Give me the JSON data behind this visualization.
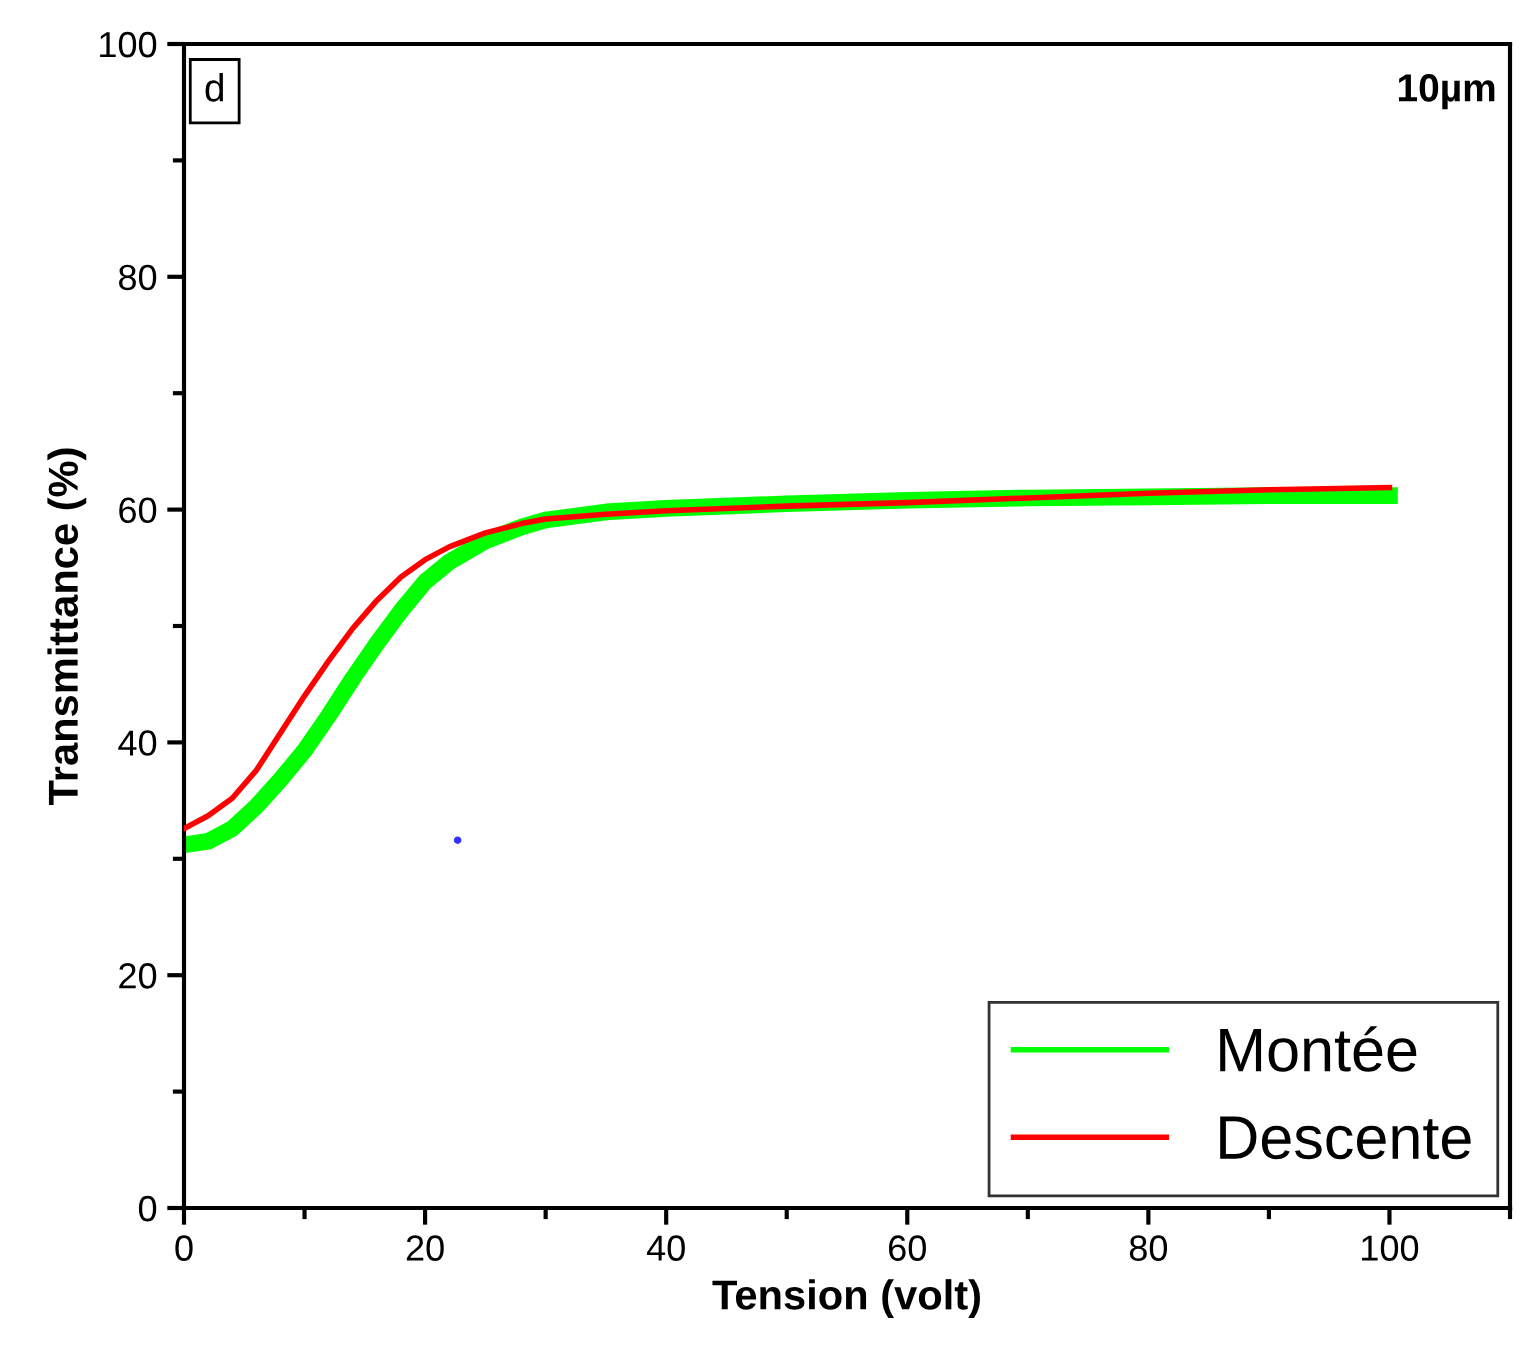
{
  "chart_data": {
    "type": "line",
    "xlabel": "Tension (volt)",
    "ylabel": "Transmittance (%)",
    "xlim": [
      0,
      110
    ],
    "ylim": [
      0,
      100
    ],
    "xticks": [
      0,
      20,
      40,
      60,
      80,
      100
    ],
    "yticks": [
      0,
      20,
      40,
      60,
      80,
      100
    ],
    "grid": false,
    "legend": "bottom right",
    "annotations": [
      "d",
      "10µm"
    ],
    "series": [
      {
        "name": "Montée",
        "color": "#00ff00",
        "x": [
          0,
          2,
          4,
          6,
          8,
          10,
          12,
          14,
          16,
          18,
          20,
          22,
          25,
          28,
          30,
          35,
          40,
          50,
          60,
          70,
          80,
          90,
          100
        ],
        "values": [
          31.2,
          31.5,
          32.6,
          34.5,
          36.8,
          39.3,
          42.3,
          45.5,
          48.5,
          51.3,
          53.8,
          55.5,
          57.3,
          58.5,
          59.1,
          59.8,
          60.1,
          60.5,
          60.8,
          61.0,
          61.1,
          61.2,
          61.2
        ]
      },
      {
        "name": "Descente",
        "color": "#ff0000",
        "x": [
          0,
          2,
          4,
          6,
          8,
          10,
          12,
          14,
          16,
          18,
          20,
          22,
          25,
          28,
          30,
          35,
          40,
          50,
          60,
          70,
          80,
          90,
          100
        ],
        "values": [
          32.6,
          33.7,
          35.2,
          37.6,
          40.8,
          44.0,
          47.0,
          49.8,
          52.2,
          54.2,
          55.7,
          56.8,
          58.0,
          58.8,
          59.2,
          59.6,
          59.9,
          60.3,
          60.6,
          61.0,
          61.4,
          61.7,
          61.9
        ]
      },
      {
        "type": "scatter",
        "color": "#3333ff",
        "x": [
          22.7
        ],
        "values": [
          31.6
        ]
      }
    ]
  }
}
